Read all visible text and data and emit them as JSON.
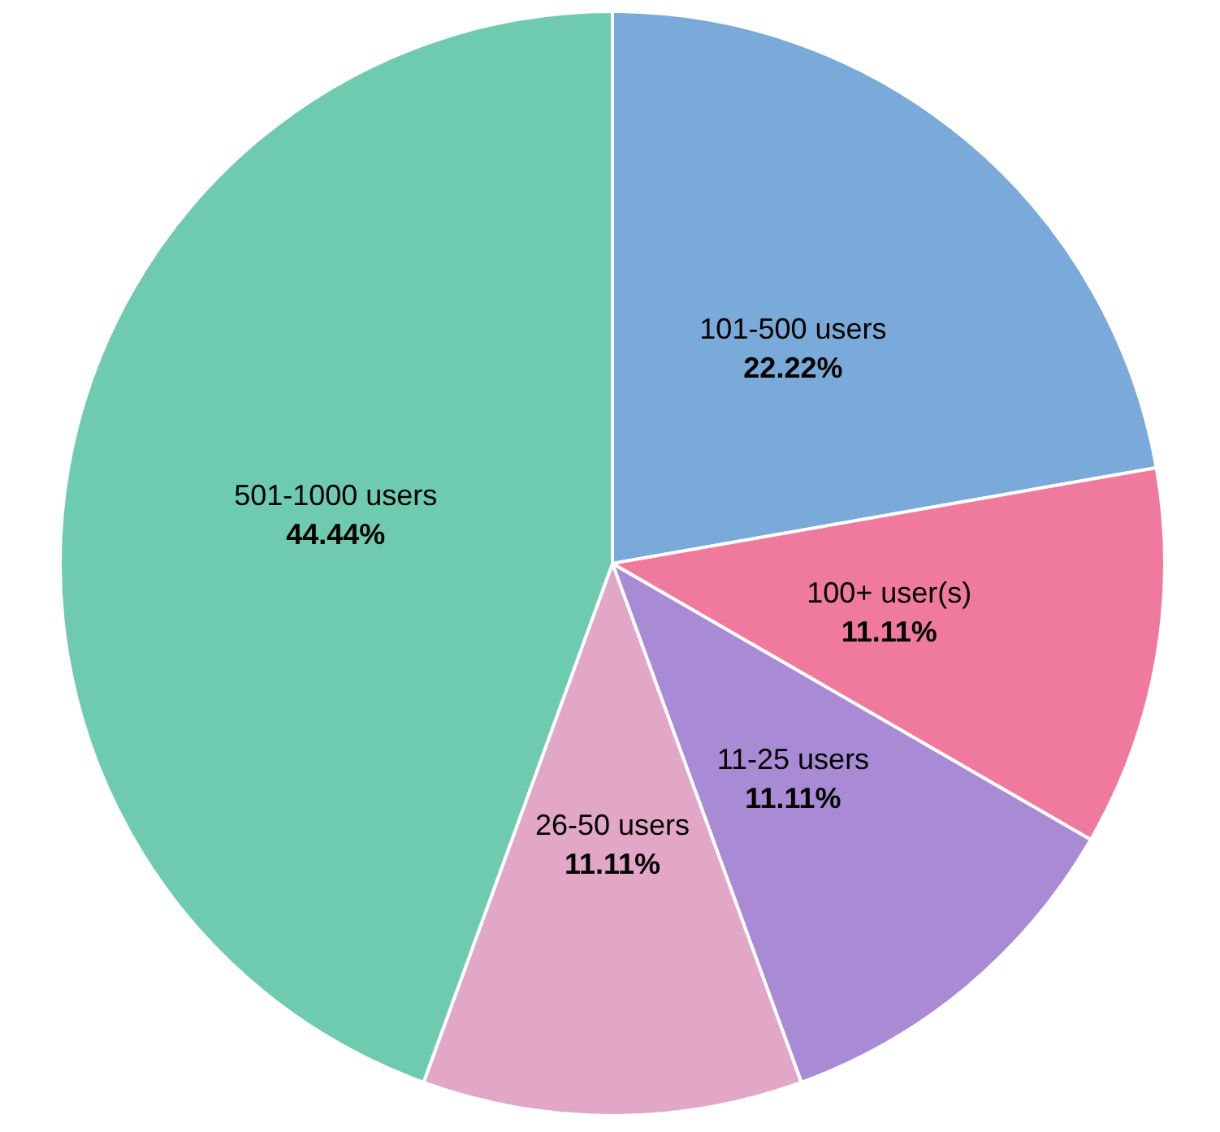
{
  "chart_data": {
    "type": "pie",
    "categories": [
      "101-500 users",
      "100+ user(s)",
      "11-25 users",
      "26-50 users",
      "501-1000 users"
    ],
    "values": [
      22.22,
      11.11,
      11.11,
      11.11,
      44.44
    ],
    "value_labels": [
      "22.22%",
      "11.11%",
      "11.11%",
      "11.11%",
      "44.44%"
    ],
    "colors": [
      "#7aaad9",
      "#ef7a9e",
      "#a98ad4",
      "#e2a6c6",
      "#6ecbb0"
    ],
    "legend": false
  }
}
